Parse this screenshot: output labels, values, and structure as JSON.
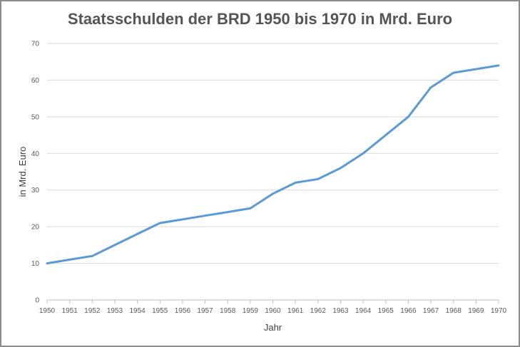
{
  "chart_data": {
    "type": "line",
    "title": "Staatsschulden der BRD 1950 bis 1970 in Mrd. Euro",
    "xlabel": "Jahr",
    "ylabel": "in Mrd. Euro",
    "ylim": [
      0,
      70
    ],
    "yticks": [
      "0",
      "10",
      "20",
      "30",
      "40",
      "50",
      "60",
      "70"
    ],
    "grid": true,
    "legend": "none",
    "colors": {
      "line": "#5b9bd5",
      "grid": "#d9d9d9",
      "axis": "#bfbfbf"
    },
    "categories": [
      "1950",
      "1951",
      "1952",
      "1953",
      "1954",
      "1955",
      "1956",
      "1957",
      "1958",
      "1959",
      "1960",
      "1961",
      "1962",
      "1963",
      "1964",
      "1965",
      "1966",
      "1967",
      "1968",
      "1969",
      "1970"
    ],
    "series": [
      {
        "name": "Staatsschulden",
        "values": [
          10,
          11,
          12,
          15,
          18,
          21,
          22,
          23,
          24,
          25,
          29,
          32,
          33,
          36,
          40,
          45,
          50,
          58,
          62,
          63,
          64
        ]
      }
    ]
  }
}
